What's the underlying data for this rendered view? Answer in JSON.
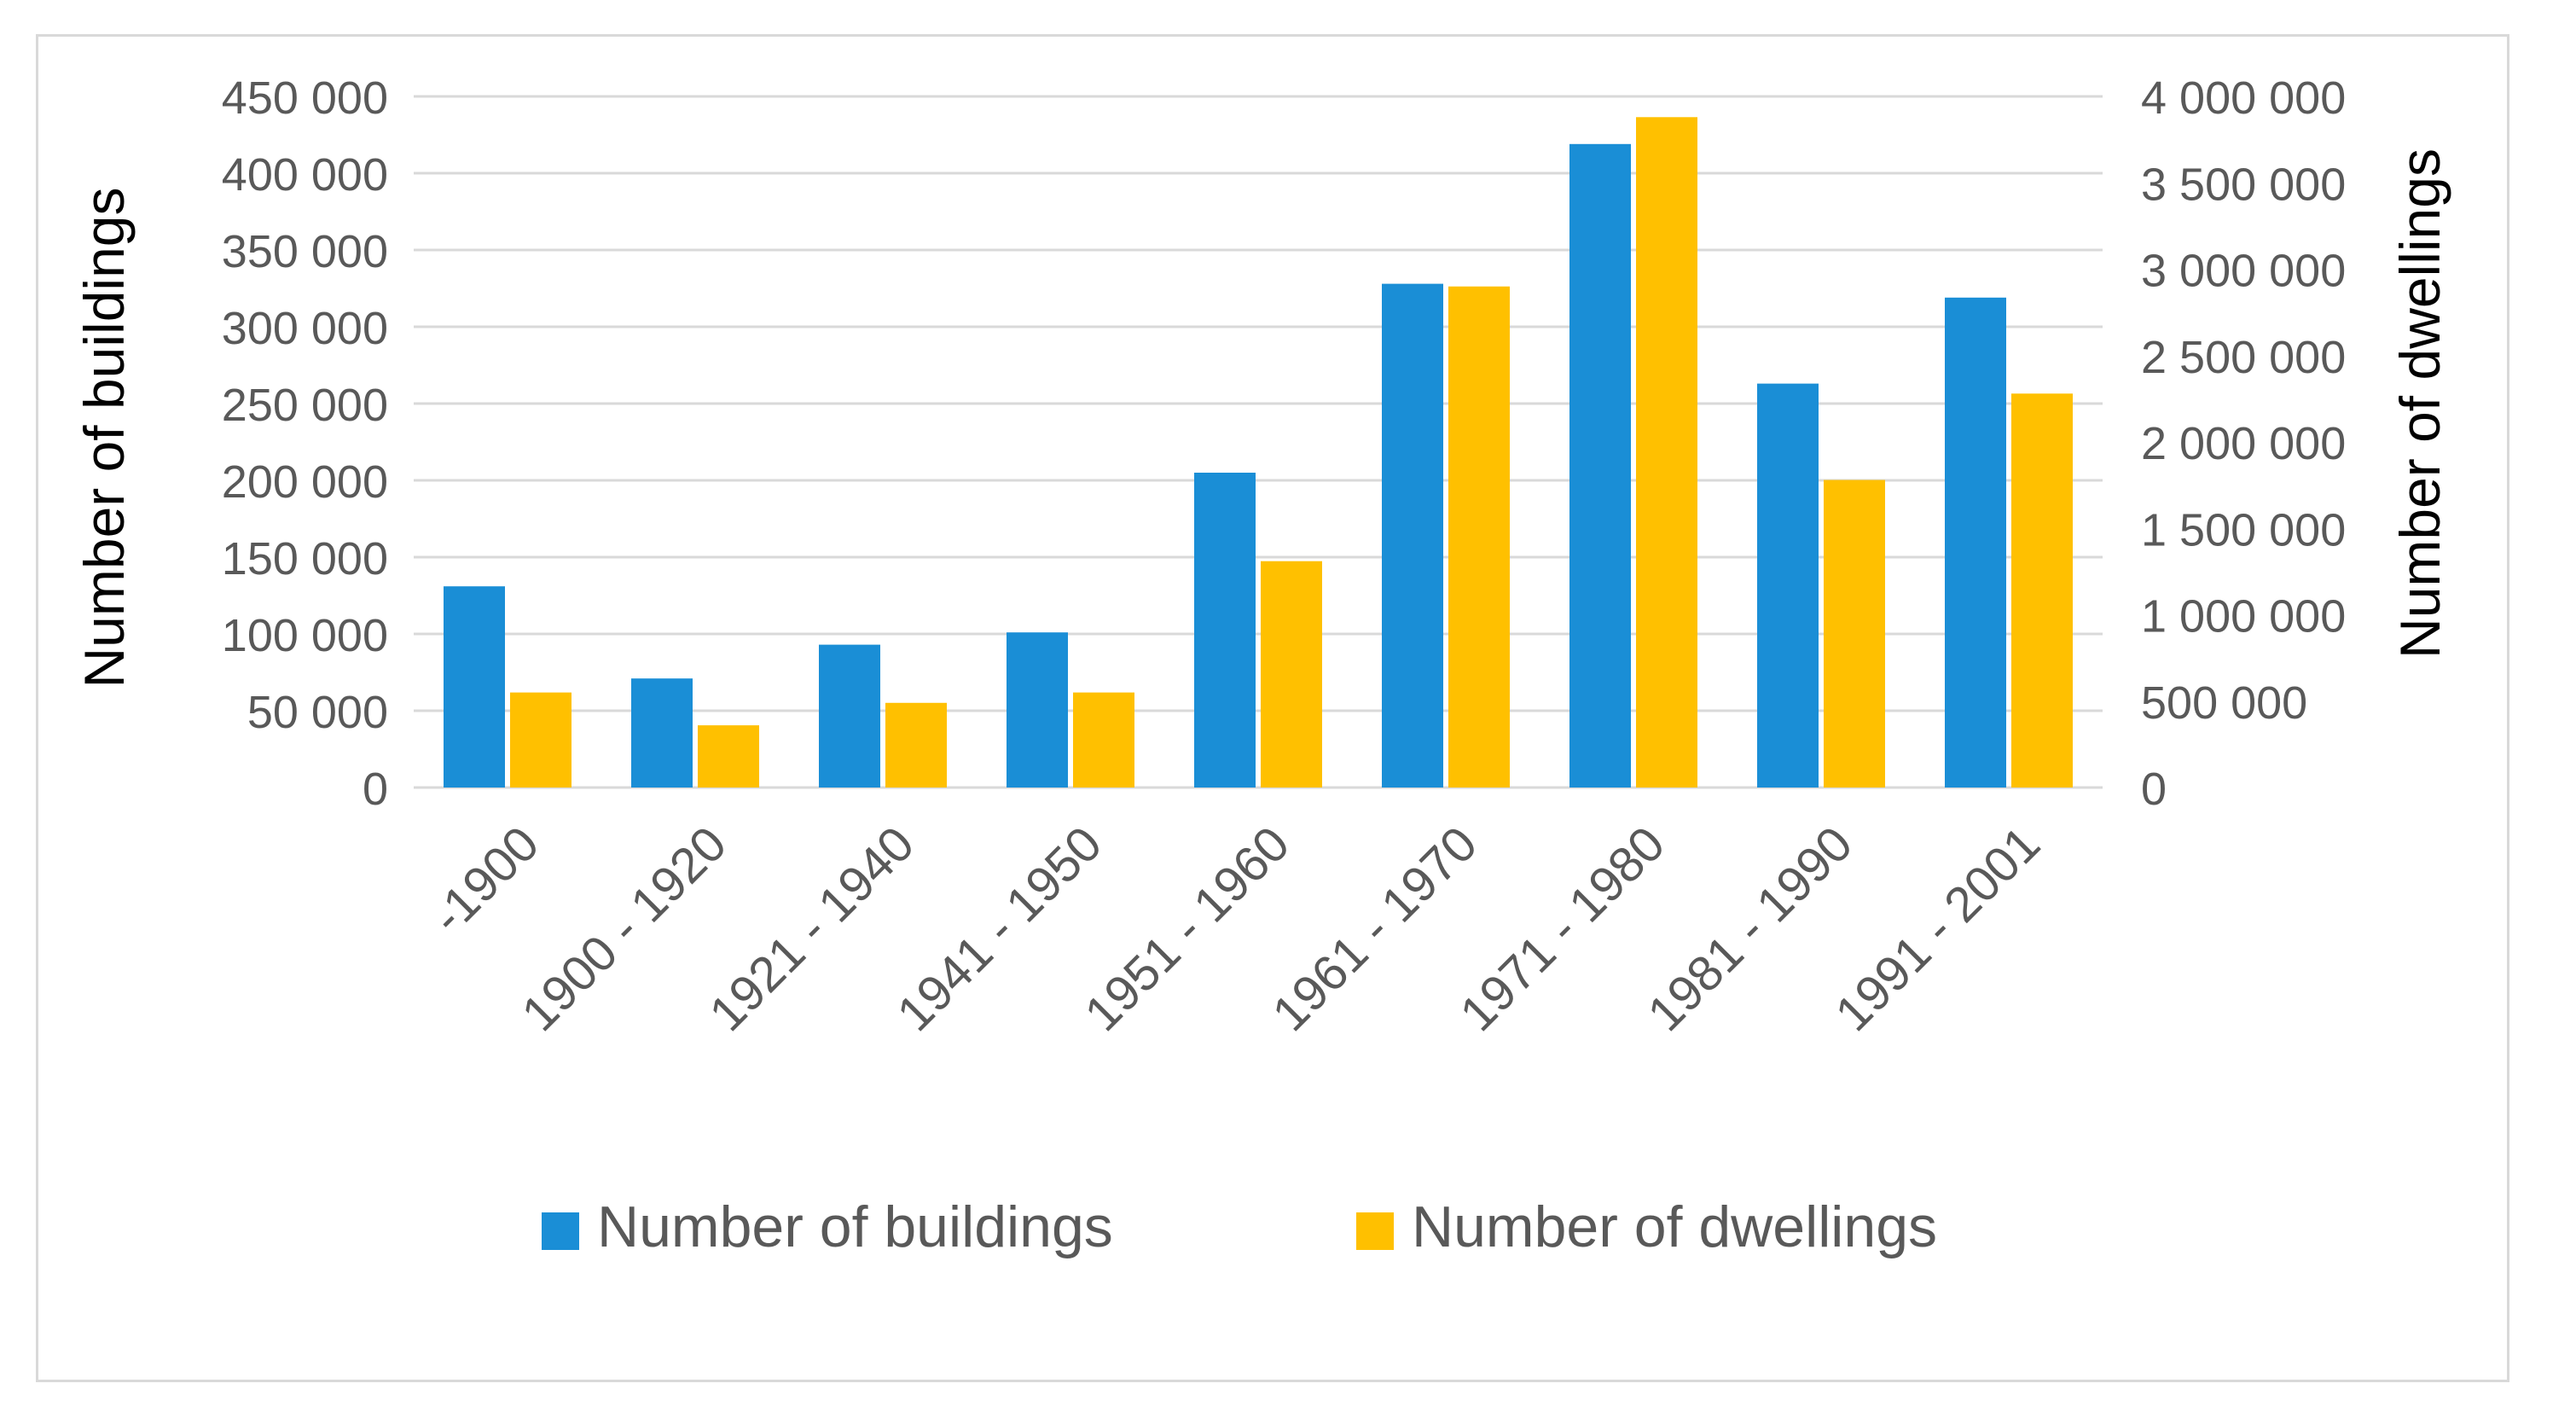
{
  "chart_data": {
    "type": "bar",
    "title": "",
    "categories": [
      "-1900",
      "1900 - 1920",
      "1921 - 1940",
      "1941 - 1950",
      "1951 - 1960",
      "1961 - 1970",
      "1971 - 1980",
      "1981 - 1990",
      "1991 - 2001"
    ],
    "series": [
      {
        "name": "Number of buildings",
        "axis": "left",
        "color": "#1a8ed6",
        "values": [
          131000,
          71000,
          93000,
          101000,
          205000,
          328000,
          419000,
          263000,
          319000
        ]
      },
      {
        "name": "Number of dwellings",
        "axis": "right",
        "color": "#ffc000",
        "values": [
          550000,
          360000,
          490000,
          550000,
          1310000,
          2900000,
          3880000,
          1780000,
          2280000
        ]
      }
    ],
    "left_axis": {
      "label": "Number of buildings",
      "ylim": [
        0,
        450000
      ],
      "ticks": [
        {
          "value": 0,
          "label": "0"
        },
        {
          "value": 50000,
          "label": "50 000"
        },
        {
          "value": 100000,
          "label": "100 000"
        },
        {
          "value": 150000,
          "label": "150 000"
        },
        {
          "value": 200000,
          "label": "200 000"
        },
        {
          "value": 250000,
          "label": "250 000"
        },
        {
          "value": 300000,
          "label": "300 000"
        },
        {
          "value": 350000,
          "label": "350 000"
        },
        {
          "value": 400000,
          "label": "400 000"
        },
        {
          "value": 450000,
          "label": "450 000"
        }
      ]
    },
    "right_axis": {
      "label": "Number of dwellings",
      "ylim": [
        0,
        4000000
      ],
      "ticks": [
        {
          "value": 0,
          "label": "0"
        },
        {
          "value": 500000,
          "label": "500 000"
        },
        {
          "value": 1000000,
          "label": "1 000 000"
        },
        {
          "value": 1500000,
          "label": "1 500 000"
        },
        {
          "value": 2000000,
          "label": "2 000 000"
        },
        {
          "value": 2500000,
          "label": "2 500 000"
        },
        {
          "value": 3000000,
          "label": "3 000 000"
        },
        {
          "value": 3500000,
          "label": "3 500 000"
        },
        {
          "value": 4000000,
          "label": "4 000 000"
        }
      ]
    },
    "grid": true,
    "legend": "bottom"
  },
  "colors": {
    "grid": "#d9d9d9",
    "text": "#595959",
    "axis_title": "#000000"
  }
}
